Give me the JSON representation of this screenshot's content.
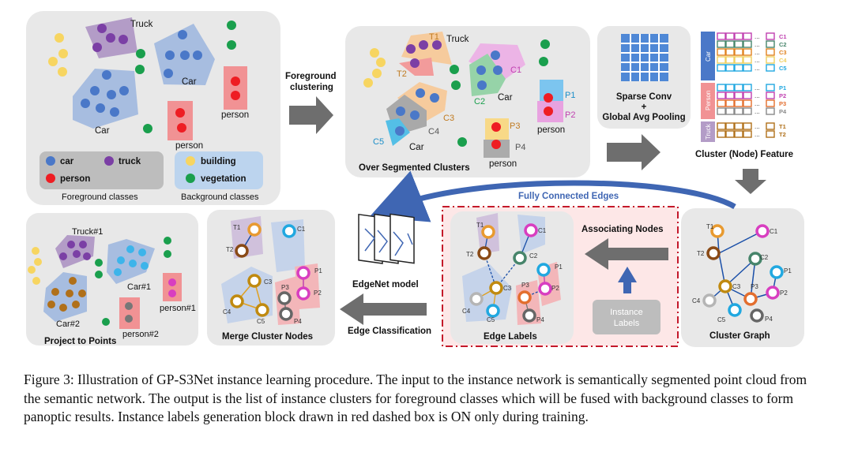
{
  "colors": {
    "car": "#4a78c8",
    "truck": "#7b3fa5",
    "person": "#ee1d23",
    "building": "#f7d561",
    "vegetation": "#1a9f4d",
    "panel_bg": "#e8e8e8",
    "arrow": "#6e6e6e",
    "curve_arrow": "#3f66b3",
    "red_dash": "#c4182a"
  },
  "panel1": {
    "truck": "Truck",
    "car_a": "Car",
    "car_b": "Car",
    "person_a": "person",
    "person_b": "person",
    "legend": {
      "car": "car",
      "truck": "truck",
      "person": "person",
      "building": "building",
      "vegetation": "vegetation"
    },
    "fg_caption": "Foreground classes",
    "bg_caption": "Background classes"
  },
  "arrow1": {
    "line1": "Foreground",
    "line2": "clustering"
  },
  "panel2": {
    "title": "Over Segmented Clusters",
    "t1": "T1",
    "truck": "Truck",
    "t2": "T2",
    "c1": "C1",
    "c2": "C2",
    "car_top": "Car",
    "c3": "C3",
    "c4": "C4",
    "c5": "C5",
    "car_bottom": "Car",
    "p1": "P1",
    "p2": "P2",
    "person_right": "person",
    "p3": "P3",
    "p4": "P4",
    "person_bottom": "person"
  },
  "panel3": {
    "line1": "Sparse Conv",
    "line2": "+",
    "line3": "Global Avg Pooling"
  },
  "feature": {
    "title": "Cluster (Node) Feature",
    "groups": [
      {
        "name": "Car",
        "rows": [
          "C1",
          "C2",
          "C3",
          "C4",
          "C5"
        ]
      },
      {
        "name": "Person",
        "rows": [
          "P1",
          "P2",
          "P3",
          "P4"
        ]
      },
      {
        "name": "Truck",
        "rows": [
          "T1",
          "T2"
        ]
      }
    ],
    "ellipsis": "..."
  },
  "cluster_graph": {
    "title": "Cluster Graph",
    "t1": "T1",
    "c1": "C1",
    "t2": "T2",
    "c2": "C2",
    "p1": "P1",
    "c3": "C3",
    "p3": "P3",
    "p2": "P2",
    "c4": "C4",
    "c5": "C5",
    "p4": "P4"
  },
  "associating": "Associating Nodes",
  "instance_labels": {
    "line1": "Instance",
    "line2": "Labels"
  },
  "fully_connected": "Fully Connected Edges",
  "edge_labels": {
    "title": "Edge Labels",
    "t1": "T1",
    "c1": "C1",
    "t2": "T2",
    "c2": "C2",
    "p1": "P1",
    "c3": "C3",
    "p3": "P3",
    "p2": "P2",
    "c4": "C4",
    "c5": "C5",
    "p4": "P4"
  },
  "edgenet": {
    "title": "EdgeNet model"
  },
  "edge_classification": "Edge Classification",
  "merge": {
    "title": "Merge Cluster Nodes",
    "t1": "T1",
    "t2": "T2",
    "c1": "C1",
    "c3": "C3",
    "c4": "C4",
    "c5": "C5",
    "p1": "P1",
    "p2": "P2",
    "p3": "P3",
    "p4": "P4"
  },
  "project": {
    "title": "Project to Points",
    "truck": "Truck#1",
    "car1": "Car#1",
    "car2": "Car#2",
    "person1": "person#1",
    "person2": "person#2"
  },
  "caption": "Figure 3: Illustration of GP-S3Net instance learning procedure. The input to the instance network is semantically segmented point cloud from the semantic network. The output is the list of instance clusters for foreground classes which will be fused with background classes to form panoptic results. Instance labels generation block drawn in red dashed box is ON only during training."
}
